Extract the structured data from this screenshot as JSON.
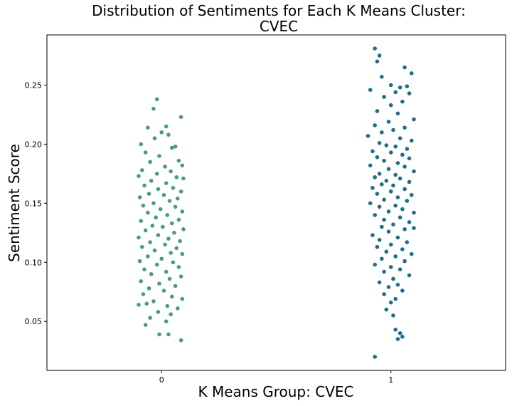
{
  "chart_data": {
    "type": "scatter",
    "title_line1": "Distribution of Sentiments for Each K Means Cluster:",
    "title_line2": "CVEC",
    "xlabel": "K Means Group: CVEC",
    "ylabel": "Sentiment Score",
    "categories": [
      "0",
      "1"
    ],
    "xlim": [
      -0.5,
      1.5
    ],
    "ylim": [
      0.0085,
      0.2925
    ],
    "yticks": [
      "0.05",
      "0.10",
      "0.15",
      "0.20",
      "0.25"
    ],
    "grid": false,
    "series": [
      {
        "category": "0",
        "color": "#4a9a8a",
        "points": [
          {
            "x": -0.02,
            "y": 0.238
          },
          {
            "x": -0.035,
            "y": 0.23
          },
          {
            "x": 0.085,
            "y": 0.223
          },
          {
            "x": -0.06,
            "y": 0.214
          },
          {
            "x": 0.02,
            "y": 0.215
          },
          {
            "x": 0.0,
            "y": 0.21
          },
          {
            "x": 0.03,
            "y": 0.208
          },
          {
            "x": -0.03,
            "y": 0.205
          },
          {
            "x": -0.09,
            "y": 0.2
          },
          {
            "x": 0.06,
            "y": 0.198
          },
          {
            "x": 0.045,
            "y": 0.197
          },
          {
            "x": -0.07,
            "y": 0.193
          },
          {
            "x": -0.01,
            "y": 0.19
          },
          {
            "x": 0.075,
            "y": 0.186
          },
          {
            "x": -0.05,
            "y": 0.185
          },
          {
            "x": 0.09,
            "y": 0.182
          },
          {
            "x": 0.015,
            "y": 0.181
          },
          {
            "x": -0.085,
            "y": 0.178
          },
          {
            "x": 0.04,
            "y": 0.177
          },
          {
            "x": -0.02,
            "y": 0.175
          },
          {
            "x": -0.1,
            "y": 0.173
          },
          {
            "x": 0.065,
            "y": 0.172
          },
          {
            "x": 0.095,
            "y": 0.171
          },
          {
            "x": -0.045,
            "y": 0.169
          },
          {
            "x": 0.02,
            "y": 0.167
          },
          {
            "x": -0.075,
            "y": 0.165
          },
          {
            "x": 0.05,
            "y": 0.163
          },
          {
            "x": -0.015,
            "y": 0.162
          },
          {
            "x": 0.085,
            "y": 0.16
          },
          {
            "x": -0.055,
            "y": 0.158
          },
          {
            "x": 0.01,
            "y": 0.157
          },
          {
            "x": -0.095,
            "y": 0.155
          },
          {
            "x": 0.07,
            "y": 0.154
          },
          {
            "x": 0.035,
            "y": 0.152
          },
          {
            "x": -0.035,
            "y": 0.15
          },
          {
            "x": -0.08,
            "y": 0.148
          },
          {
            "x": 0.06,
            "y": 0.147
          },
          {
            "x": -0.005,
            "y": 0.145
          },
          {
            "x": 0.09,
            "y": 0.143
          },
          {
            "x": -0.06,
            "y": 0.142
          },
          {
            "x": 0.025,
            "y": 0.14
          },
          {
            "x": -0.025,
            "y": 0.138
          },
          {
            "x": 0.075,
            "y": 0.136
          },
          {
            "x": -0.09,
            "y": 0.135
          },
          {
            "x": 0.045,
            "y": 0.133
          },
          {
            "x": -0.04,
            "y": 0.131
          },
          {
            "x": 0.005,
            "y": 0.13
          },
          {
            "x": 0.095,
            "y": 0.128
          },
          {
            "x": -0.07,
            "y": 0.127
          },
          {
            "x": 0.055,
            "y": 0.125
          },
          {
            "x": -0.015,
            "y": 0.123
          },
          {
            "x": -0.1,
            "y": 0.121
          },
          {
            "x": 0.03,
            "y": 0.12
          },
          {
            "x": 0.08,
            "y": 0.118
          },
          {
            "x": -0.05,
            "y": 0.117
          },
          {
            "x": 0.015,
            "y": 0.115
          },
          {
            "x": -0.085,
            "y": 0.113
          },
          {
            "x": 0.065,
            "y": 0.112
          },
          {
            "x": -0.03,
            "y": 0.11
          },
          {
            "x": 0.04,
            "y": 0.108
          },
          {
            "x": 0.09,
            "y": 0.107
          },
          {
            "x": -0.06,
            "y": 0.105
          },
          {
            "x": 0.0,
            "y": 0.103
          },
          {
            "x": -0.095,
            "y": 0.101
          },
          {
            "x": 0.05,
            "y": 0.1
          },
          {
            "x": -0.02,
            "y": 0.098
          },
          {
            "x": 0.075,
            "y": 0.096
          },
          {
            "x": -0.075,
            "y": 0.094
          },
          {
            "x": 0.02,
            "y": 0.092
          },
          {
            "x": -0.045,
            "y": 0.09
          },
          {
            "x": 0.085,
            "y": 0.088
          },
          {
            "x": 0.035,
            "y": 0.086
          },
          {
            "x": -0.09,
            "y": 0.084
          },
          {
            "x": -0.01,
            "y": 0.082
          },
          {
            "x": 0.06,
            "y": 0.08
          },
          {
            "x": -0.055,
            "y": 0.078
          },
          {
            "x": 0.01,
            "y": 0.076
          },
          {
            "x": -0.08,
            "y": 0.073
          },
          {
            "x": 0.045,
            "y": 0.071
          },
          {
            "x": 0.09,
            "y": 0.069
          },
          {
            "x": -0.035,
            "y": 0.067
          },
          {
            "x": -0.065,
            "y": 0.065
          },
          {
            "x": 0.025,
            "y": 0.063
          },
          {
            "x": 0.07,
            "y": 0.061
          },
          {
            "x": -0.1,
            "y": 0.064
          },
          {
            "x": -0.015,
            "y": 0.058
          },
          {
            "x": 0.04,
            "y": 0.056
          },
          {
            "x": -0.05,
            "y": 0.053
          },
          {
            "x": 0.02,
            "y": 0.05
          },
          {
            "x": -0.07,
            "y": 0.047
          },
          {
            "x": -0.01,
            "y": 0.039
          },
          {
            "x": 0.03,
            "y": 0.039
          },
          {
            "x": 0.085,
            "y": 0.034
          }
        ]
      },
      {
        "category": "1",
        "color": "#1f6e8a",
        "points": [
          {
            "x": 0.93,
            "y": 0.281
          },
          {
            "x": 0.95,
            "y": 0.275
          },
          {
            "x": 0.94,
            "y": 0.27
          },
          {
            "x": 1.06,
            "y": 0.265
          },
          {
            "x": 1.09,
            "y": 0.26
          },
          {
            "x": 0.96,
            "y": 0.257
          },
          {
            "x": 1.0,
            "y": 0.25
          },
          {
            "x": 1.04,
            "y": 0.248
          },
          {
            "x": 1.07,
            "y": 0.249
          },
          {
            "x": 0.91,
            "y": 0.246
          },
          {
            "x": 1.02,
            "y": 0.244
          },
          {
            "x": 1.08,
            "y": 0.243
          },
          {
            "x": 0.97,
            "y": 0.24
          },
          {
            "x": 1.05,
            "y": 0.236
          },
          {
            "x": 1.0,
            "y": 0.233
          },
          {
            "x": 0.94,
            "y": 0.228
          },
          {
            "x": 1.03,
            "y": 0.226
          },
          {
            "x": 1.1,
            "y": 0.221
          },
          {
            "x": 0.99,
            "y": 0.219
          },
          {
            "x": 0.93,
            "y": 0.216
          },
          {
            "x": 1.06,
            "y": 0.214
          },
          {
            "x": 1.01,
            "y": 0.212
          },
          {
            "x": 0.96,
            "y": 0.21
          },
          {
            "x": 0.9,
            "y": 0.207
          },
          {
            "x": 1.04,
            "y": 0.205
          },
          {
            "x": 1.09,
            "y": 0.203
          },
          {
            "x": 0.95,
            "y": 0.201
          },
          {
            "x": 0.98,
            "y": 0.199
          },
          {
            "x": 1.02,
            "y": 0.198
          },
          {
            "x": 1.07,
            "y": 0.196
          },
          {
            "x": 0.92,
            "y": 0.194
          },
          {
            "x": 1.0,
            "y": 0.193
          },
          {
            "x": 1.05,
            "y": 0.191
          },
          {
            "x": 0.94,
            "y": 0.189
          },
          {
            "x": 1.08,
            "y": 0.188
          },
          {
            "x": 0.97,
            "y": 0.186
          },
          {
            "x": 1.03,
            "y": 0.184
          },
          {
            "x": 0.91,
            "y": 0.182
          },
          {
            "x": 1.06,
            "y": 0.181
          },
          {
            "x": 0.99,
            "y": 0.179
          },
          {
            "x": 1.1,
            "y": 0.177
          },
          {
            "x": 0.95,
            "y": 0.175
          },
          {
            "x": 1.02,
            "y": 0.174
          },
          {
            "x": 0.93,
            "y": 0.172
          },
          {
            "x": 1.04,
            "y": 0.171
          },
          {
            "x": 0.98,
            "y": 0.169
          },
          {
            "x": 1.08,
            "y": 0.168
          },
          {
            "x": 0.96,
            "y": 0.166
          },
          {
            "x": 1.01,
            "y": 0.165
          },
          {
            "x": 0.92,
            "y": 0.163
          },
          {
            "x": 1.06,
            "y": 0.162
          },
          {
            "x": 1.0,
            "y": 0.16
          },
          {
            "x": 0.94,
            "y": 0.158
          },
          {
            "x": 1.09,
            "y": 0.157
          },
          {
            "x": 1.03,
            "y": 0.155
          },
          {
            "x": 0.97,
            "y": 0.153
          },
          {
            "x": 1.07,
            "y": 0.152
          },
          {
            "x": 0.91,
            "y": 0.15
          },
          {
            "x": 1.02,
            "y": 0.148
          },
          {
            "x": 0.95,
            "y": 0.147
          },
          {
            "x": 1.05,
            "y": 0.145
          },
          {
            "x": 0.99,
            "y": 0.143
          },
          {
            "x": 1.1,
            "y": 0.142
          },
          {
            "x": 0.93,
            "y": 0.14
          },
          {
            "x": 1.04,
            "y": 0.138
          },
          {
            "x": 0.97,
            "y": 0.136
          },
          {
            "x": 1.08,
            "y": 0.134
          },
          {
            "x": 1.01,
            "y": 0.132
          },
          {
            "x": 0.96,
            "y": 0.13
          },
          {
            "x": 1.06,
            "y": 0.128
          },
          {
            "x": 1.1,
            "y": 0.129
          },
          {
            "x": 0.99,
            "y": 0.126
          },
          {
            "x": 0.92,
            "y": 0.123
          },
          {
            "x": 1.03,
            "y": 0.121
          },
          {
            "x": 0.95,
            "y": 0.119
          },
          {
            "x": 1.07,
            "y": 0.117
          },
          {
            "x": 1.0,
            "y": 0.115
          },
          {
            "x": 0.94,
            "y": 0.113
          },
          {
            "x": 1.05,
            "y": 0.111
          },
          {
            "x": 0.98,
            "y": 0.109
          },
          {
            "x": 1.09,
            "y": 0.107
          },
          {
            "x": 1.02,
            "y": 0.105
          },
          {
            "x": 0.96,
            "y": 0.103
          },
          {
            "x": 1.06,
            "y": 0.101
          },
          {
            "x": 0.93,
            "y": 0.098
          },
          {
            "x": 1.0,
            "y": 0.096
          },
          {
            "x": 1.04,
            "y": 0.094
          },
          {
            "x": 0.97,
            "y": 0.092
          },
          {
            "x": 1.08,
            "y": 0.089
          },
          {
            "x": 1.01,
            "y": 0.086
          },
          {
            "x": 0.95,
            "y": 0.083
          },
          {
            "x": 1.03,
            "y": 0.081
          },
          {
            "x": 0.99,
            "y": 0.079
          },
          {
            "x": 1.05,
            "y": 0.076
          },
          {
            "x": 0.97,
            "y": 0.073
          },
          {
            "x": 1.02,
            "y": 0.069
          },
          {
            "x": 1.0,
            "y": 0.066
          },
          {
            "x": 0.98,
            "y": 0.06
          },
          {
            "x": 1.01,
            "y": 0.055
          },
          {
            "x": 1.02,
            "y": 0.043
          },
          {
            "x": 1.04,
            "y": 0.04
          },
          {
            "x": 1.05,
            "y": 0.037
          },
          {
            "x": 1.03,
            "y": 0.035
          },
          {
            "x": 0.93,
            "y": 0.02
          }
        ]
      }
    ]
  }
}
